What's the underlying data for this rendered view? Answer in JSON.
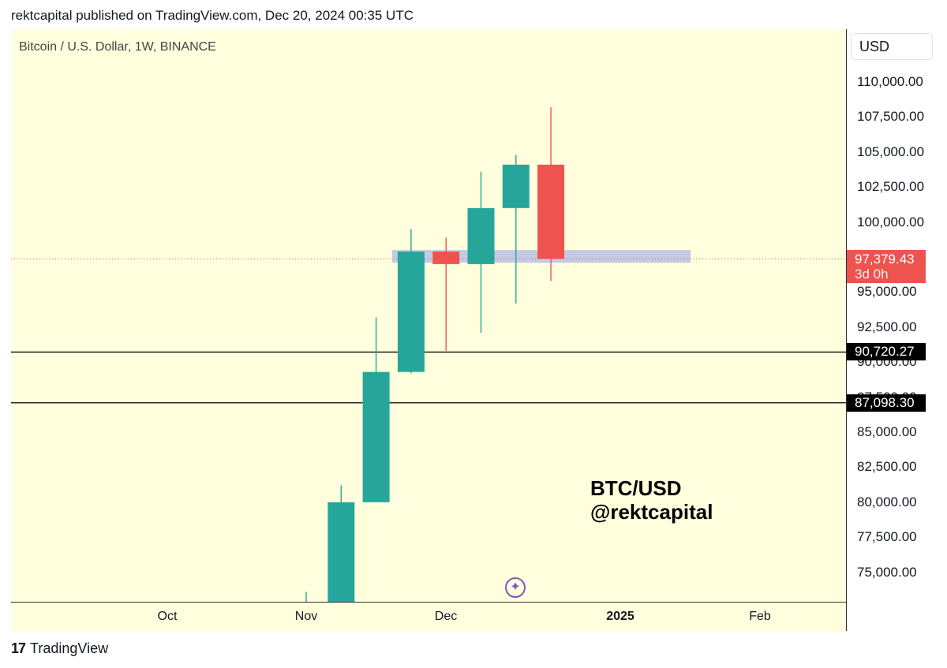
{
  "header": {
    "published": "rektcapital published on TradingView.com, Dec 20, 2024 00:35 UTC"
  },
  "symbol": {
    "title": "Bitcoin / U.S. Dollar, 1W, BINANCE"
  },
  "currency": "USD",
  "watermark": {
    "line1": "BTC/USD",
    "line2": "@rektcapital"
  },
  "footer": {
    "brand": "TradingView",
    "logo_text": "17"
  },
  "colors": {
    "background": "#ffffdd",
    "up": "#26a69a",
    "down": "#ef5350",
    "zone": "#b0b8e6",
    "price_line": "#ef5350"
  },
  "icons": {
    "sparkle": "sparkle-icon"
  },
  "chart_data": {
    "type": "candlestick",
    "title": "Bitcoin / U.S. Dollar, 1W, BINANCE",
    "y_ticks": [
      "110,000.00",
      "107,500.00",
      "105,000.00",
      "102,500.00",
      "100,000.00",
      "97,500.00",
      "95,000.00",
      "92,500.00",
      "90,000.00",
      "87,500.00",
      "85,000.00",
      "82,500.00",
      "80,000.00",
      "77,500.00",
      "75,000.00"
    ],
    "y_tick_values": [
      110000,
      107500,
      105000,
      102500,
      100000,
      97500,
      95000,
      92500,
      90000,
      87500,
      85000,
      82500,
      80000,
      77500,
      75000
    ],
    "x_ticks": [
      {
        "label": "Oct",
        "bold": false
      },
      {
        "label": "Nov",
        "bold": false
      },
      {
        "label": "Dec",
        "bold": false
      },
      {
        "label": "2025",
        "bold": true
      },
      {
        "label": "Feb",
        "bold": false
      }
    ],
    "candles": [
      {
        "week": "Oct 28",
        "open": 72300,
        "high": 73600,
        "low": 72300,
        "close": 72400
      },
      {
        "week": "Nov 4",
        "open": 69500,
        "high": 81200,
        "low": 69000,
        "close": 80000
      },
      {
        "week": "Nov 11",
        "open": 80000,
        "high": 93200,
        "low": 80000,
        "close": 89300
      },
      {
        "week": "Nov 18",
        "open": 89300,
        "high": 99500,
        "low": 89200,
        "close": 97900
      },
      {
        "week": "Nov 25",
        "open": 97900,
        "high": 98900,
        "low": 90800,
        "close": 97000
      },
      {
        "week": "Dec 2",
        "open": 97000,
        "high": 103600,
        "low": 92100,
        "close": 101000
      },
      {
        "week": "Dec 9",
        "open": 101000,
        "high": 104800,
        "low": 94200,
        "close": 104100
      },
      {
        "week": "Dec 16",
        "open": 104100,
        "high": 108200,
        "low": 95800,
        "close": 97379.43
      }
    ],
    "current_price": {
      "value": "97,379.43",
      "countdown": "3d 0h",
      "number": 97379.43
    },
    "horizontal_lines": [
      {
        "value": 90720.27,
        "label": "90,720.27"
      },
      {
        "value": 87098.3,
        "label": "87,098.30"
      }
    ],
    "zone": {
      "low": 97100,
      "high": 98000,
      "from_week": 3,
      "to_week": 11
    },
    "ylim": [
      72600,
      113000
    ]
  }
}
